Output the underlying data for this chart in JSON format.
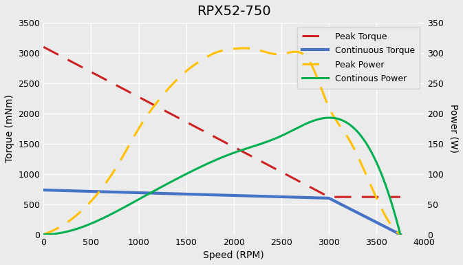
{
  "title": "RPX52-750",
  "xlabel": "Speed (RPM)",
  "ylabel_left": "Torque (mNm)",
  "ylabel_right": "Power (W)",
  "xlim": [
    0,
    4000
  ],
  "ylim_left": [
    0,
    3500
  ],
  "ylim_right": [
    0,
    350
  ],
  "xticks": [
    0,
    500,
    1000,
    1500,
    2000,
    2500,
    3000,
    3500,
    4000
  ],
  "yticks_left": [
    0,
    500,
    1000,
    1500,
    2000,
    2500,
    3000,
    3500
  ],
  "yticks_right": [
    0,
    50,
    100,
    150,
    200,
    250,
    300,
    350
  ],
  "peak_torque": {
    "speed": [
      0,
      3000,
      3750
    ],
    "torque": [
      3100,
      620,
      620
    ],
    "color": "#CC2222",
    "linestyle": "--",
    "linewidth": 2.2,
    "label": "Peak Torque",
    "dashes": [
      8,
      5
    ]
  },
  "continuous_torque": {
    "speed": [
      0,
      3000,
      3750
    ],
    "torque": [
      735,
      600,
      0
    ],
    "color": "#4472C4",
    "linestyle": "-",
    "linewidth": 3.0,
    "label": "Continuous Torque"
  },
  "peak_power": {
    "speed": [
      0,
      200,
      500,
      800,
      1000,
      1200,
      1500,
      1700,
      1800,
      2000,
      2100,
      2200,
      2500,
      2800,
      3000,
      3200,
      3500,
      3750
    ],
    "power": [
      0,
      15,
      55,
      120,
      175,
      220,
      270,
      292,
      300,
      307,
      308,
      307,
      298,
      285,
      210,
      160,
      60,
      0
    ],
    "color": "#FFC000",
    "linestyle": "--",
    "linewidth": 2.2,
    "label": "Peak Power",
    "dashes": [
      8,
      5
    ]
  },
  "continuous_power": {
    "speed": [
      0,
      500,
      1000,
      1500,
      2000,
      2500,
      3000,
      3750
    ],
    "power": [
      0,
      18,
      58,
      100,
      135,
      163,
      193,
      0
    ],
    "color": "#00B050",
    "linestyle": "-",
    "linewidth": 2.2,
    "label": "Continous Power"
  },
  "background_color": "#ebebeb",
  "grid_color": "#ffffff",
  "title_fontsize": 14,
  "label_fontsize": 10,
  "tick_fontsize": 9,
  "legend_fontsize": 9
}
